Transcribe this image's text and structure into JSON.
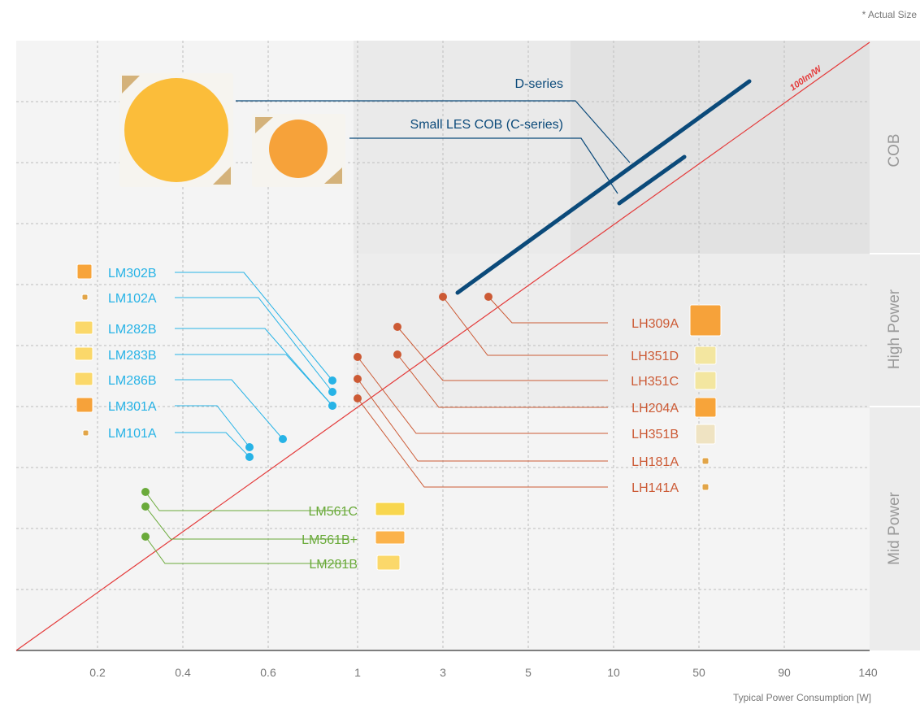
{
  "note": "* Actual Size",
  "colors": {
    "mid_power": "#6aaa3a",
    "high_power_mid": "#27b3e6",
    "high_power": "#cc5a35",
    "cob": "#0b4a7a",
    "efficacy_line": "#e43a3a",
    "grid": "#bdbdbd",
    "axis": "#555555"
  },
  "chart_data": {
    "type": "scatter",
    "xlabel": "Typical Power Consumption [W]",
    "ylabel": "",
    "x_ticks": [
      "0.2",
      "0.4",
      "0.6",
      "1",
      "3",
      "5",
      "10",
      "50",
      "90",
      "140"
    ],
    "grid": true,
    "zones": [
      "Mid Power",
      "High Power",
      "COB"
    ],
    "reference_line": {
      "label": "100lm/W"
    },
    "series": [
      {
        "name": "Mid Power",
        "points": [
          {
            "label": "LM561C",
            "x": 0.3
          },
          {
            "label": "LM561B+",
            "x": 0.3
          },
          {
            "label": "LM281B",
            "x": 0.3
          }
        ]
      },
      {
        "name": "High Power",
        "points": [
          {
            "label": "LM302B",
            "x": 0.8
          },
          {
            "label": "LM102A",
            "x": 0.8
          },
          {
            "label": "LM282B",
            "x": 0.8
          },
          {
            "label": "LM283B",
            "x": 0.8
          },
          {
            "label": "LM286B",
            "x": 0.65
          },
          {
            "label": "LM301A",
            "x": 0.5
          },
          {
            "label": "LM101A",
            "x": 0.5
          }
        ]
      },
      {
        "name": "High Power",
        "points": [
          {
            "label": "LH309A",
            "x": 4
          },
          {
            "label": "LH351D",
            "x": 3
          },
          {
            "label": "LH351C",
            "x": 2
          },
          {
            "label": "LH204A",
            "x": 2
          },
          {
            "label": "LH351B",
            "x": 1
          },
          {
            "label": "LH181A",
            "x": 1
          },
          {
            "label": "LH141A",
            "x": 1
          }
        ]
      },
      {
        "name": "COB",
        "ranges": [
          {
            "label": "D-series",
            "x": [
              3,
              70
            ]
          },
          {
            "label": "Small LES COB (C-series)",
            "x": [
              10,
              40
            ]
          }
        ]
      }
    ]
  }
}
